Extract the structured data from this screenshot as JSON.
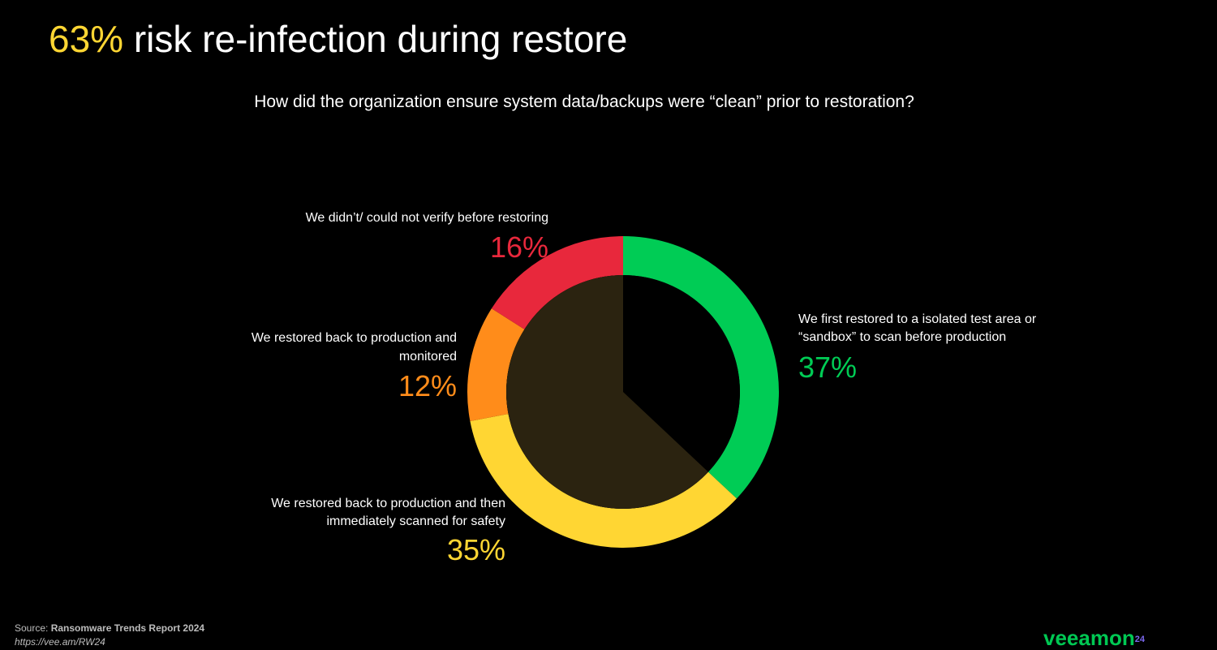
{
  "title": {
    "highlight": "63%",
    "rest": " risk re-infection during restore"
  },
  "subtitle": "How did the organization ensure system data/backups were “clean” prior to restoration?",
  "chart_data": {
    "type": "pie",
    "title": "How did the organization ensure system data/backups were “clean” prior to restoration?",
    "categories": [
      "We first restored to a isolated test area or “sandbox” to scan before production",
      "We restored back to production and then immediately scanned for safety",
      "We restored back to production and monitored",
      "We didn’t/ could not verify before restoring"
    ],
    "values": [
      37,
      35,
      12,
      16
    ],
    "colors": [
      "#00cc55",
      "#ffd633",
      "#ff8c1a",
      "#e8283c"
    ],
    "labels": {
      "sandbox": {
        "line1": "We first restored to a isolated test area or",
        "line2": "“sandbox” to scan before production",
        "pct": "37%"
      },
      "scanned": {
        "line1": "We restored back to production and then",
        "line2": "immediately scanned for safety",
        "pct": "35%"
      },
      "monitored": {
        "line1": "We restored back to production and",
        "line2": "monitored",
        "pct": "12%"
      },
      "unverified": {
        "line1": "We didn’t/ could not verify before restoring",
        "pct": "16%"
      }
    },
    "highlighted_share": 63
  },
  "footer": {
    "source_prefix": "Source: ",
    "source_name": "Ransomware Trends Report 2024",
    "url": "https://vee.am/RW24",
    "logo": "veeamon",
    "logo_sup": "24"
  }
}
